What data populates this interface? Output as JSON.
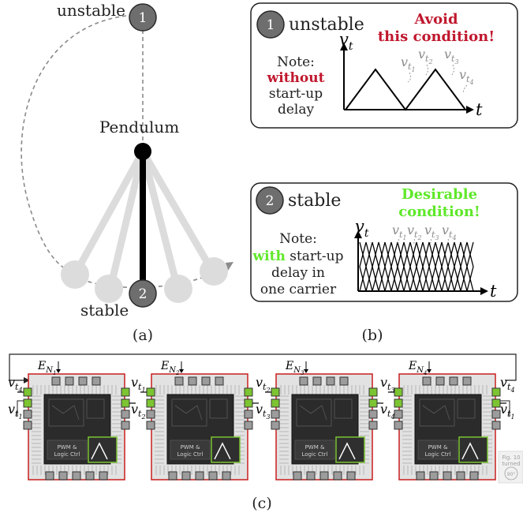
{
  "panel_a": {
    "state_unstable": "unstable",
    "state_stable": "stable",
    "pendulum_label": "Pendulum",
    "marker_1": "1",
    "marker_2": "2",
    "caption": "(a)"
  },
  "panel_b": {
    "box1": {
      "number": "1",
      "title": "unstable",
      "warning_line1": "Avoid",
      "warning_line2": "this condition!",
      "note_label": "Note:",
      "note_highlight": "without",
      "note_line2": "start-up",
      "note_line3": "delay",
      "axis_y": "v",
      "axis_y_sub": "t",
      "axis_x": "t",
      "carrier_labels": [
        {
          "base": "v",
          "sub": "t",
          "subsub": "1"
        },
        {
          "base": "v",
          "sub": "t",
          "subsub": "2"
        },
        {
          "base": "v",
          "sub": "t",
          "subsub": "3"
        },
        {
          "base": "v",
          "sub": "t",
          "subsub": "4"
        }
      ]
    },
    "box2": {
      "number": "2",
      "title": "stable",
      "good_line1": "Desirable",
      "good_line2": "condition!",
      "note_label": "Note:",
      "note_highlight": "with",
      "note_line1_rest": " start-up",
      "note_line2": "delay in",
      "note_line3": "one carrier",
      "axis_y": "v",
      "axis_y_sub": "t",
      "axis_x": "t",
      "carrier_labels": [
        {
          "base": "v",
          "sub": "t",
          "subsub": "1"
        },
        {
          "base": "v",
          "sub": "t",
          "subsub": "2"
        },
        {
          "base": "v",
          "sub": "t",
          "subsub": "3"
        },
        {
          "base": "v",
          "sub": "t",
          "subsub": "4"
        }
      ]
    },
    "caption": "(b)"
  },
  "panel_c": {
    "boards": [
      {
        "enable": "E",
        "enable_sub": "N",
        "enable_subsub": "1",
        "chip_label_1": "PWM &",
        "chip_label_2": "Logic Ctrl"
      },
      {
        "enable": "E",
        "enable_sub": "N",
        "enable_subsub": "2",
        "chip_label_1": "PWM &",
        "chip_label_2": "Logic Ctrl"
      },
      {
        "enable": "E",
        "enable_sub": "N",
        "enable_subsub": "3",
        "chip_label_1": "PWM &",
        "chip_label_2": "Logic Ctrl"
      },
      {
        "enable": "E",
        "enable_sub": "N",
        "enable_subsub": "4",
        "chip_label_1": "PWM &",
        "chip_label_2": "Logic Ctrl"
      }
    ],
    "signals": [
      {
        "base": "v",
        "sub": "t",
        "subsub": "4"
      },
      {
        "base": "v",
        "sub": "t",
        "subsub": "1"
      },
      {
        "base": "v",
        "sub": "t",
        "subsub": "1"
      },
      {
        "base": "v",
        "sub": "t",
        "subsub": "2"
      },
      {
        "base": "v",
        "sub": "t",
        "subsub": "2"
      },
      {
        "base": "v",
        "sub": "t",
        "subsub": "3"
      },
      {
        "base": "v",
        "sub": "t",
        "subsub": "3"
      },
      {
        "base": "v",
        "sub": "t",
        "subsub": "4"
      },
      {
        "base": "v",
        "sub": "t",
        "subsub": "4"
      },
      {
        "base": "v",
        "sub": "t",
        "subsub": "1"
      }
    ],
    "corner_note_1": "Fig. 10",
    "corner_note_2": "turned",
    "corner_note_3": "90°",
    "caption": "(c)"
  },
  "colors": {
    "warning_red": "#c0182e",
    "good_green": "#5fe82a",
    "board_red": "#c81e1e",
    "board_gray": "#cfcfcf",
    "chip_dark": "#2b2b2b",
    "pad_green": "#7cc432",
    "pendulum_ghost": "#dcdcdc",
    "marker_gray": "#6e6e6e",
    "label_gray": "#8a8a8a"
  }
}
